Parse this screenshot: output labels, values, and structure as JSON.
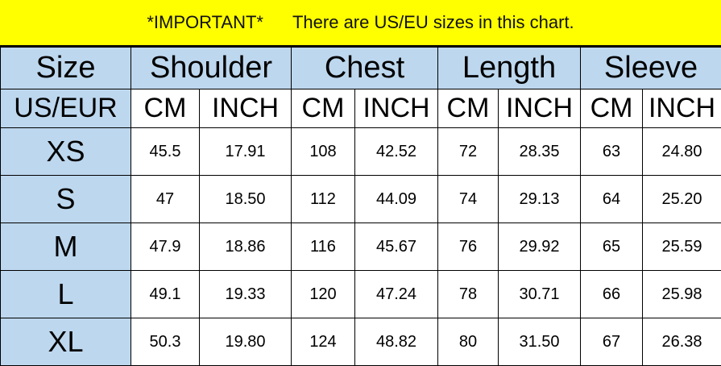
{
  "banner": {
    "important": "*IMPORTANT*",
    "note": "There are US/EU sizes in this chart."
  },
  "header": {
    "size": "Size",
    "groups": [
      "Shoulder",
      "Chest",
      "Length",
      "Sleeve"
    ],
    "size_sub": "US/EUR",
    "units": [
      "CM",
      "INCH",
      "CM",
      "INCH",
      "CM",
      "INCH",
      "CM",
      "INCH"
    ]
  },
  "rows": [
    {
      "size": "XS",
      "values": [
        "45.5",
        "17.91",
        "108",
        "42.52",
        "72",
        "28.35",
        "63",
        "24.80"
      ]
    },
    {
      "size": "S",
      "values": [
        "47",
        "18.50",
        "112",
        "44.09",
        "74",
        "29.13",
        "64",
        "25.20"
      ]
    },
    {
      "size": "M",
      "values": [
        "47.9",
        "18.86",
        "116",
        "45.67",
        "76",
        "29.92",
        "65",
        "25.59"
      ]
    },
    {
      "size": "L",
      "values": [
        "49.1",
        "19.33",
        "120",
        "47.24",
        "78",
        "30.71",
        "66",
        "25.98"
      ]
    },
    {
      "size": "XL",
      "values": [
        "50.3",
        "19.80",
        "124",
        "48.82",
        "80",
        "31.50",
        "67",
        "26.38"
      ]
    }
  ],
  "colors": {
    "banner": "#ffff00",
    "header": "#bdd7ee"
  }
}
